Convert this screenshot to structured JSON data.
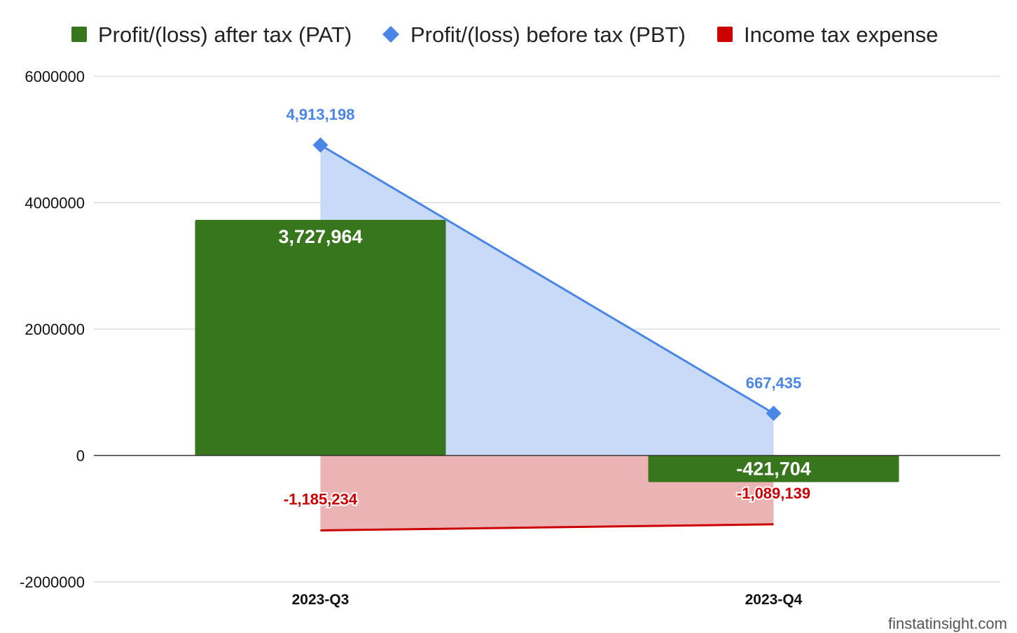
{
  "chart_data": {
    "type": "bar",
    "categories": [
      "2023-Q3",
      "2023-Q4"
    ],
    "series": [
      {
        "name": "Profit/(loss) after tax (PAT)",
        "kind": "bar",
        "values": [
          3727964,
          -421704
        ],
        "color": "#38761d",
        "labels": [
          "3,727,964",
          "-421,704"
        ]
      },
      {
        "name": "Profit/(loss) before tax (PBT)",
        "kind": "area-line",
        "values": [
          4913198,
          667435
        ],
        "color": "#4a86e8",
        "fill": "#c9daf8",
        "labels": [
          "4,913,198",
          "667,435"
        ]
      },
      {
        "name": "Income tax expense",
        "kind": "area-line",
        "values": [
          -1185234,
          -1089139
        ],
        "color": "#cc0000",
        "fill": "#ebb3b3",
        "labels": [
          "-1,185,234",
          "-1,089,139"
        ]
      }
    ],
    "yticks": [
      "6000000",
      "4000000",
      "2000000",
      "0",
      "-2000000"
    ],
    "ylim": [
      -2000000,
      6000000
    ],
    "legend_position": "top",
    "grid": true
  },
  "watermark": "finstatinsight.com"
}
